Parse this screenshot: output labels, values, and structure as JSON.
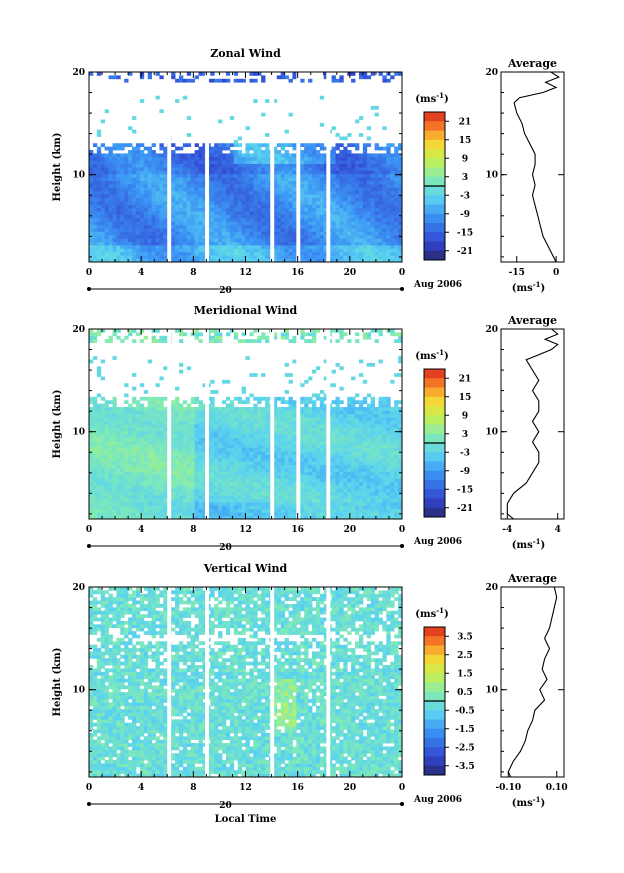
{
  "chart_data": [
    {
      "type": "heatmap",
      "title": "Zonal Wind",
      "ylabel": "Height (km)",
      "y_ticks": [
        "20",
        "10"
      ],
      "ylim": [
        1.5,
        20
      ],
      "x_ticks": [
        "0",
        "4",
        "8",
        "12",
        "16",
        "20",
        "0"
      ],
      "xlim": [
        0,
        24
      ],
      "date_label": "20",
      "month_label": "Aug 2006",
      "colorbar_unit": "(ms",
      "colorbar_unit_sup": "-1",
      "colorbar_unit_close": ")",
      "colorbar_ticks": [
        "21",
        "15",
        "9",
        "3",
        "-3",
        "-9",
        "-15",
        "-21"
      ],
      "colorbar_values": [
        21,
        15,
        9,
        3,
        -3,
        -9,
        -15,
        -21
      ],
      "colorbar_range": [
        -24,
        24
      ],
      "data_gaps_hours": [
        [
          6.0,
          6.3
        ],
        [
          8.9,
          9.2
        ],
        [
          13.9,
          14.2
        ],
        [
          15.9,
          16.2
        ],
        [
          18.2,
          18.5
        ]
      ],
      "average": {
        "title": "Average",
        "xlabel": "(ms",
        "xlabel_sup": "-1",
        "xlabel_close": ")",
        "x_ticks": [
          "-15",
          "0"
        ],
        "xlim": [
          -21,
          3
        ],
        "height_km": [
          1.5,
          2,
          3,
          4,
          5,
          6,
          7,
          8,
          9,
          10,
          11,
          12,
          13,
          14,
          15,
          16,
          17,
          17.5,
          18,
          18.5,
          19,
          19.5,
          20
        ],
        "wind": [
          0,
          -1,
          -3,
          -5,
          -6,
          -7,
          -8,
          -9,
          -8,
          -9,
          -8,
          -8,
          -10,
          -12,
          -13,
          -15,
          -16,
          -14,
          -5,
          0,
          -4,
          1,
          -2
        ]
      }
    },
    {
      "type": "heatmap",
      "title": "Meridional Wind",
      "ylabel": "Height (km)",
      "y_ticks": [
        "20",
        "10"
      ],
      "ylim": [
        1.5,
        20
      ],
      "x_ticks": [
        "0",
        "4",
        "8",
        "12",
        "16",
        "20",
        "0"
      ],
      "xlim": [
        0,
        24
      ],
      "date_label": "20",
      "month_label": "Aug 2006",
      "colorbar_unit": "(ms",
      "colorbar_unit_sup": "-1",
      "colorbar_unit_close": ")",
      "colorbar_ticks": [
        "21",
        "15",
        "9",
        "3",
        "-3",
        "-9",
        "-15",
        "-21"
      ],
      "colorbar_values": [
        21,
        15,
        9,
        3,
        -3,
        -9,
        -15,
        -21
      ],
      "colorbar_range": [
        -24,
        24
      ],
      "data_gaps_hours": [
        [
          6.0,
          6.3
        ],
        [
          8.9,
          9.2
        ],
        [
          13.9,
          14.2
        ],
        [
          15.9,
          16.2
        ],
        [
          18.2,
          18.5
        ]
      ],
      "average": {
        "title": "Average",
        "xlabel": "(ms",
        "xlabel_sup": "-1",
        "xlabel_close": ")",
        "x_ticks": [
          "-4",
          "4"
        ],
        "xlim": [
          -5,
          5
        ],
        "height_km": [
          1.5,
          2,
          3,
          4,
          5,
          6,
          7,
          8,
          9,
          10,
          11,
          12,
          13,
          14,
          15,
          16,
          17,
          17.5,
          18,
          18.5,
          19,
          19.5,
          20
        ],
        "wind": [
          -3,
          -4,
          -4,
          -3,
          -1,
          0,
          1,
          1,
          0,
          1,
          0,
          1,
          1,
          0,
          1,
          0,
          -1,
          1,
          3,
          4,
          2,
          4,
          3
        ]
      }
    },
    {
      "type": "heatmap",
      "title": "Vertical Wind",
      "ylabel": "Height (km)",
      "xlabel": "Local Time",
      "y_ticks": [
        "20",
        "10"
      ],
      "ylim": [
        1.5,
        20
      ],
      "x_ticks": [
        "0",
        "4",
        "8",
        "12",
        "16",
        "20",
        "0"
      ],
      "xlim": [
        0,
        24
      ],
      "date_label": "20",
      "month_label": "Aug 2006",
      "colorbar_unit": "(ms",
      "colorbar_unit_sup": "-1",
      "colorbar_unit_close": ")",
      "colorbar_ticks": [
        "3.5",
        "2.5",
        "1.5",
        "0.5",
        "-0.5",
        "-1.5",
        "-2.5",
        "-3.5"
      ],
      "colorbar_values": [
        3.5,
        2.5,
        1.5,
        0.5,
        -0.5,
        -1.5,
        -2.5,
        -3.5
      ],
      "colorbar_range": [
        -4,
        4
      ],
      "data_gaps_hours": [
        [
          6.0,
          6.3
        ],
        [
          8.9,
          9.2
        ],
        [
          13.9,
          14.2
        ],
        [
          18.2,
          18.5
        ]
      ],
      "average": {
        "title": "Average",
        "xlabel": "(ms",
        "xlabel_sup": "-1",
        "xlabel_close": ")",
        "x_ticks": [
          "-0.10",
          "0.10"
        ],
        "xlim": [
          -0.13,
          0.13
        ],
        "height_km": [
          1.5,
          2,
          3,
          4,
          5,
          6,
          7,
          8,
          9,
          10,
          11,
          12,
          13,
          14,
          15,
          16,
          17,
          18,
          19,
          20
        ],
        "wind": [
          -0.09,
          -0.1,
          -0.08,
          -0.05,
          -0.03,
          -0.02,
          0.0,
          0.01,
          0.05,
          0.03,
          0.06,
          0.04,
          0.05,
          0.07,
          0.05,
          0.07,
          0.08,
          0.09,
          0.1,
          0.09
        ]
      }
    }
  ]
}
